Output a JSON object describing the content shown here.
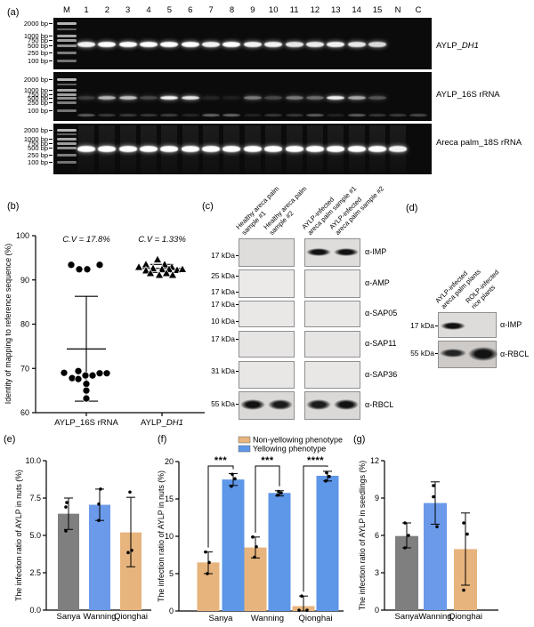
{
  "figure": {
    "panel_labels": {
      "a": "(a)",
      "b": "(b)",
      "c": "(c)",
      "d": "(d)",
      "e": "(e)",
      "f": "(f)",
      "g": "(g)"
    }
  },
  "panel_a": {
    "lane_headers": [
      "M",
      "1",
      "2",
      "3",
      "4",
      "5",
      "6",
      "7",
      "8",
      "9",
      "10",
      "11",
      "12",
      "13",
      "14",
      "15",
      "N",
      "C"
    ],
    "ladder_labels": [
      "2000 bp",
      "1000 bp",
      "750 bp",
      "500 bp",
      "250 bp",
      "100 bp"
    ],
    "gel_labels": [
      {
        "prefix": "AYLP_",
        "italic": "DH1"
      },
      {
        "prefix": "AYLP_16S rRNA",
        "italic": ""
      },
      {
        "prefix": "Areca palm_18S rRNA",
        "italic": ""
      }
    ],
    "gels": [
      {
        "bands": [
          0.95,
          1,
          1,
          1,
          1,
          1,
          0.95,
          1,
          0.95,
          0.95,
          0.9,
          0.92,
          0.95,
          0.9,
          0.85,
          0,
          0
        ]
      },
      {
        "bands": [
          0.2,
          0.7,
          0.75,
          0.25,
          0.95,
          0.9,
          0.1,
          0.08,
          0.45,
          0.25,
          0.45,
          0.4,
          0.95,
          0.65,
          0.3,
          0,
          0
        ],
        "dimer_bands": [
          0.5,
          0.3,
          0.3,
          0.28,
          0.32,
          0.18,
          0.55,
          0.55,
          0.15,
          0.28,
          0.28,
          0.5,
          0.15,
          0.5,
          0.28,
          0.3,
          0.38
        ]
      },
      {
        "bands": [
          1,
          1,
          1,
          1,
          1,
          1,
          1,
          1,
          1,
          1,
          1,
          1,
          1,
          1,
          1,
          0.95,
          0
        ]
      }
    ]
  },
  "panel_c": {
    "column_labels": [
      "Healthy areca palm\nsample #1",
      "Healthy areca palm\nsample #2",
      "AYLP-infected\nareca palm sample #1",
      "AYLP-infected\nareca palm sample #2"
    ],
    "rows": [
      {
        "kda_labels": [
          "17 kDa"
        ],
        "antibody": "α-IMP",
        "bands": [
          0,
          0,
          1,
          1
        ]
      },
      {
        "kda_labels": [
          "25 kDa",
          "17 kDa"
        ],
        "antibody": "α-AMP",
        "bands": [
          0,
          0,
          0,
          0
        ]
      },
      {
        "kda_labels": [
          "17 kDa",
          "10 kDa"
        ],
        "antibody": "α-SAP05",
        "bands": [
          0,
          0,
          0,
          0
        ]
      },
      {
        "kda_labels": [
          "17 kDa"
        ],
        "antibody": "α-SAP11",
        "bands": [
          0,
          0,
          0,
          0
        ]
      },
      {
        "kda_labels": [
          "31 kDa"
        ],
        "antibody": "α-SAP36",
        "bands": [
          0,
          0,
          0,
          0
        ]
      },
      {
        "kda_labels": [
          "55 kDa"
        ],
        "antibody": "α-RBCL",
        "bands": [
          1,
          0.95,
          0.95,
          1
        ]
      }
    ]
  },
  "panel_d": {
    "column_labels": [
      "AYLP-infected\nareca palm plants",
      "ROLP-infected\nrice plants"
    ],
    "rows": [
      {
        "kda_labels": [
          "17 kDa"
        ],
        "antibody": "α-IMP",
        "bands": [
          1,
          0
        ]
      },
      {
        "kda_labels": [
          "55 kDa"
        ],
        "antibody": "α-RBCL",
        "bands": [
          0.9,
          1
        ]
      }
    ]
  },
  "chart_data": [
    {
      "panel": "b",
      "type": "scatter",
      "ylabel": "Identity of mapping to reference sequence (%)",
      "ylim": [
        60,
        100
      ],
      "yticks": [
        60,
        70,
        80,
        90,
        100
      ],
      "groups": [
        {
          "label_prefix": "AYLP_16S rRNA",
          "label_italic": "",
          "marker": "circle",
          "cv_label": "C.V = 17.8%",
          "mean": 74.4,
          "sd_high": 86.3,
          "sd_low": 62.6,
          "points": [
            [
              -17,
              93.4
            ],
            [
              -8,
              92.4
            ],
            [
              1,
              92.4
            ],
            [
              15,
              93.4
            ],
            [
              -25,
              69.0
            ],
            [
              -16,
              67.8
            ],
            [
              -9,
              69.4
            ],
            [
              -9,
              67.6
            ],
            [
              -1,
              68.4
            ],
            [
              7,
              68.4
            ],
            [
              15,
              68.9
            ],
            [
              23,
              68.9
            ],
            [
              0,
              66.5
            ],
            [
              0,
              65.0
            ],
            [
              0,
              63.2
            ]
          ]
        },
        {
          "label_prefix": "AYLP_",
          "label_italic": "DH1",
          "marker": "triangle",
          "cv_label": "C.V = 1.33%",
          "mean": 92.6,
          "sd_high": 93.5,
          "sd_low": 91.7,
          "points": [
            [
              -5,
              94.6
            ],
            [
              -18,
              93.5
            ],
            [
              3,
              93.5
            ],
            [
              -26,
              92.9
            ],
            [
              11,
              92.9
            ],
            [
              -10,
              92.6
            ],
            [
              0,
              92.4
            ],
            [
              8,
              92.4
            ],
            [
              -18,
              92.1
            ],
            [
              17,
              92.2
            ],
            [
              -13,
              91.5
            ],
            [
              5,
              91.5
            ],
            [
              -3,
              91.1
            ],
            [
              12,
              91.1
            ],
            [
              23,
              92.4
            ]
          ]
        }
      ]
    },
    {
      "panel": "e",
      "type": "bar",
      "ylabel": "The infection ratio of AYLP in nuts (%)",
      "ylim": [
        0,
        10
      ],
      "yticks": [
        0,
        2.5,
        5,
        7.5,
        10
      ],
      "ytick_labels": [
        "0.0",
        "2.5",
        "5.0",
        "7.5",
        "10.0"
      ],
      "categories": [
        "Sanya",
        "Wanning",
        "Qionghai"
      ],
      "bars": [
        {
          "category": "Sanya",
          "value": 6.45,
          "err_low": 5.4,
          "err_high": 7.5,
          "color": "#7f7f7f",
          "points": [
            7.2,
            6.9,
            5.3
          ]
        },
        {
          "category": "Wanning",
          "value": 7.05,
          "err_low": 6.0,
          "err_high": 8.1,
          "color": "#6a9ae9",
          "points": [
            8.1,
            7.1,
            6.0
          ]
        },
        {
          "category": "Qionghai",
          "value": 5.2,
          "err_low": 2.9,
          "err_high": 7.55,
          "color": "#e7b47d",
          "points": [
            7.9,
            4.0,
            3.85
          ]
        }
      ]
    },
    {
      "panel": "f",
      "type": "grouped_bar",
      "ylabel": "The infection ratio of AYLP in nuts (%)",
      "ylim": [
        0,
        20
      ],
      "yticks": [
        0,
        5,
        10,
        15,
        20
      ],
      "ytick_labels": [
        "0",
        "5",
        "10",
        "15",
        "20"
      ],
      "categories": [
        "Sanya",
        "Wanning",
        "Qionghai"
      ],
      "legend": [
        {
          "label": "Non-yellowing phenotype",
          "color": "#e7b47d"
        },
        {
          "label": "Yellowing phenotype",
          "color": "#5e96e8"
        }
      ],
      "series": [
        {
          "name": "Non-yellowing phenotype",
          "color": "#e7b47d",
          "values": [
            6.5,
            8.5,
            0.65
          ],
          "err_low": [
            5.0,
            7.1,
            0.0
          ],
          "err_high": [
            7.9,
            9.9,
            2.0
          ],
          "points": [
            [
              7.9,
              6.5,
              5.0
            ],
            [
              9.9,
              8.6,
              7.2
            ],
            [
              2.0,
              0.1,
              0.1
            ]
          ]
        },
        {
          "name": "Yellowing phenotype",
          "color": "#5e96e8",
          "values": [
            17.6,
            15.8,
            18.1
          ],
          "err_low": [
            16.8,
            15.4,
            17.4
          ],
          "err_high": [
            18.4,
            16.1,
            18.7
          ],
          "points": [
            [
              18.3,
              17.7,
              16.7
            ],
            [
              16.0,
              15.8,
              15.5
            ],
            [
              18.5,
              18.0,
              17.4
            ]
          ]
        }
      ],
      "significance": [
        "***",
        "***",
        "****"
      ]
    },
    {
      "panel": "g",
      "type": "bar",
      "ylabel": "The infection ratio of AYLP in seedlings (%)",
      "ylim": [
        0,
        12
      ],
      "yticks": [
        0,
        3,
        6,
        9,
        12
      ],
      "ytick_labels": [
        "0",
        "3",
        "6",
        "9",
        "12"
      ],
      "categories": [
        "Sanya",
        "Wanning",
        "Qionghai"
      ],
      "bars": [
        {
          "category": "Sanya",
          "value": 5.95,
          "err_low": 5.0,
          "err_high": 7.0,
          "color": "#7f7f7f",
          "points": [
            7.0,
            6.0,
            5.0
          ]
        },
        {
          "category": "Wanning",
          "value": 8.6,
          "err_low": 6.9,
          "err_high": 10.3,
          "color": "#6a9ae9",
          "points": [
            10.0,
            9.1,
            6.7
          ]
        },
        {
          "category": "Qionghai",
          "value": 4.9,
          "err_low": 2.0,
          "err_high": 7.8,
          "color": "#e7b47d",
          "points": [
            7.0,
            6.1,
            1.6
          ]
        }
      ]
    }
  ]
}
